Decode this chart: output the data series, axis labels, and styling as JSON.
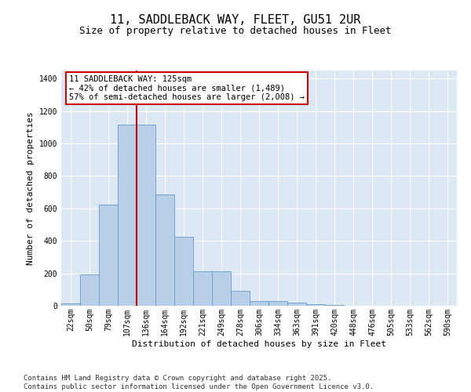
{
  "title_line1": "11, SADDLEBACK WAY, FLEET, GU51 2UR",
  "title_line2": "Size of property relative to detached houses in Fleet",
  "xlabel": "Distribution of detached houses by size in Fleet",
  "ylabel": "Number of detached properties",
  "categories": [
    "22sqm",
    "50sqm",
    "79sqm",
    "107sqm",
    "136sqm",
    "164sqm",
    "192sqm",
    "221sqm",
    "249sqm",
    "278sqm",
    "306sqm",
    "334sqm",
    "363sqm",
    "391sqm",
    "420sqm",
    "448sqm",
    "476sqm",
    "505sqm",
    "533sqm",
    "562sqm",
    "590sqm"
  ],
  "values": [
    15,
    195,
    625,
    1115,
    1115,
    685,
    425,
    215,
    215,
    90,
    30,
    30,
    20,
    10,
    5,
    0,
    0,
    0,
    0,
    0,
    0
  ],
  "bar_color": "#b8cfe8",
  "bar_edge_color": "#6699cc",
  "vline_color": "#cc0000",
  "annotation_text": "11 SADDLEBACK WAY: 125sqm\n← 42% of detached houses are smaller (1,489)\n57% of semi-detached houses are larger (2,008) →",
  "annotation_box_color": "#cc0000",
  "ylim": [
    0,
    1450
  ],
  "yticks": [
    0,
    200,
    400,
    600,
    800,
    1000,
    1200,
    1400
  ],
  "background_color": "#dde8f5",
  "grid_color": "#ffffff",
  "footer_line1": "Contains HM Land Registry data © Crown copyright and database right 2025.",
  "footer_line2": "Contains public sector information licensed under the Open Government Licence v3.0.",
  "title_fontsize": 11,
  "subtitle_fontsize": 9,
  "axis_label_fontsize": 8,
  "tick_fontsize": 7,
  "annot_fontsize": 7.5,
  "footer_fontsize": 6.5
}
